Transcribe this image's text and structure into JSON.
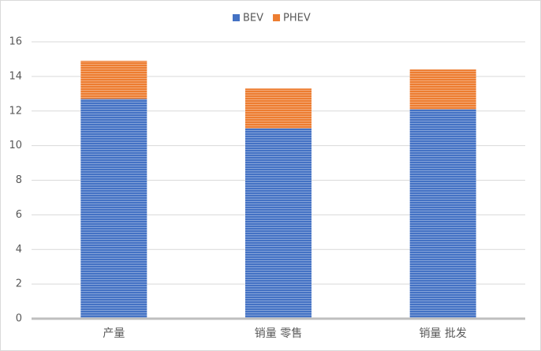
{
  "chart_data": {
    "type": "stacked_bar",
    "categories": [
      "产量",
      "销量 零售",
      "销量 批发"
    ],
    "series": [
      {
        "name": "BEV",
        "color": "#4472c4",
        "values": [
          12.7,
          11.0,
          12.1
        ]
      },
      {
        "name": "PHEV",
        "color": "#ed7d31",
        "values": [
          2.2,
          2.3,
          2.3
        ]
      }
    ],
    "ylim": [
      0,
      16
    ],
    "yticks": [
      0,
      2,
      4,
      6,
      8,
      10,
      12,
      14,
      16
    ],
    "grid": true,
    "legend": "top"
  }
}
